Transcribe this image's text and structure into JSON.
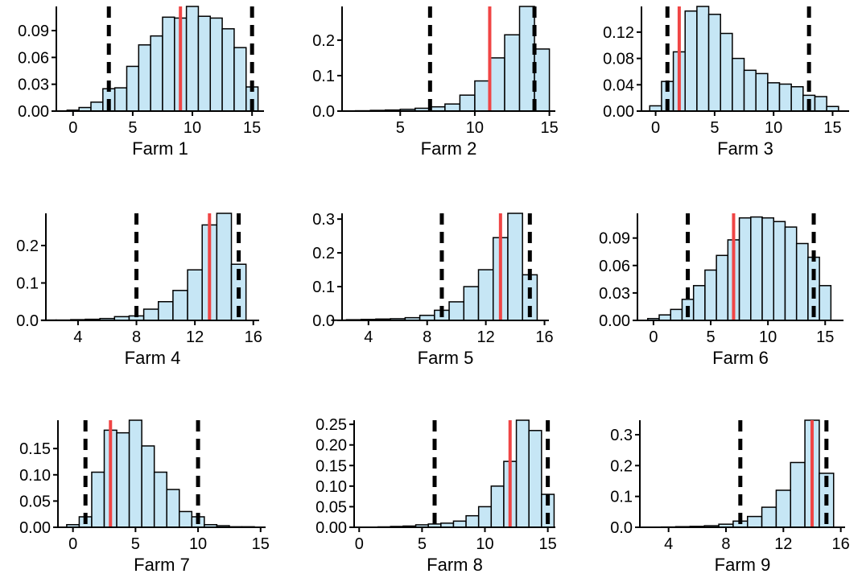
{
  "chart_data": [
    {
      "type": "histogram",
      "xlabel": "Farm 1",
      "color": "#c6e6f5",
      "bins": [
        -0.5,
        0.5,
        1.5,
        2.5,
        3.5,
        4.5,
        5.5,
        6.5,
        7.5,
        8.5,
        9.5,
        10.5,
        11.5,
        12.5,
        13.5,
        14.5,
        15.5
      ],
      "values": [
        0.001,
        0.004,
        0.01,
        0.025,
        0.026,
        0.05,
        0.074,
        0.084,
        0.105,
        0.104,
        0.117,
        0.106,
        0.104,
        0.092,
        0.071,
        0.027
      ],
      "xlim": [
        -1.4,
        16
      ],
      "ylim": [
        0,
        0.117
      ],
      "xticks": [
        0,
        5,
        10,
        15
      ],
      "yticks": [
        {
          "value": 0,
          "label": "0.00"
        },
        0.03,
        0.06,
        0.09
      ],
      "reference_line": 9,
      "interval": [
        3,
        15
      ]
    },
    {
      "type": "histogram",
      "xlabel": "Farm 2",
      "color": "#c6e6f5",
      "bins": [
        2,
        3,
        4,
        5,
        6,
        7,
        8,
        9,
        10,
        11,
        12,
        13,
        14,
        15
      ],
      "values": [
        0.001,
        0.002,
        0.003,
        0.005,
        0.008,
        0.012,
        0.02,
        0.045,
        0.085,
        0.15,
        0.215,
        0.295,
        0.175
      ],
      "xlim": [
        1.1,
        15.4
      ],
      "ylim": [
        0,
        0.295
      ],
      "xticks": [
        5,
        10,
        15
      ],
      "yticks": [
        {
          "value": 0,
          "label": "0.0"
        },
        0.1,
        0.2
      ],
      "reference_line": 11,
      "interval": [
        7,
        14
      ]
    },
    {
      "type": "histogram",
      "xlabel": "Farm 3",
      "color": "#c6e6f5",
      "bins": [
        -0.5,
        0.5,
        1.5,
        2.5,
        3.5,
        4.5,
        5.5,
        6.5,
        7.5,
        8.5,
        9.5,
        10.5,
        11.5,
        12.5,
        13.5,
        14.5,
        15.5
      ],
      "values": [
        0.008,
        0.045,
        0.09,
        0.152,
        0.159,
        0.147,
        0.118,
        0.08,
        0.062,
        0.057,
        0.043,
        0.041,
        0.037,
        0.024,
        0.022,
        0.007
      ],
      "xlim": [
        -1.2,
        16.4
      ],
      "ylim": [
        0,
        0.159
      ],
      "xticks": [
        0,
        5,
        10,
        15
      ],
      "yticks": [
        {
          "value": 0,
          "label": "0.00"
        },
        0.04,
        0.08,
        0.12
      ],
      "reference_line": 2,
      "interval": [
        1,
        13
      ]
    },
    {
      "type": "histogram",
      "xlabel": "Farm 4",
      "color": "#c6e6f5",
      "bins": [
        1.5,
        2.5,
        3.5,
        4.5,
        5.5,
        6.5,
        7.5,
        8.5,
        9.5,
        10.5,
        11.5,
        12.5,
        13.5,
        14.5,
        15.5
      ],
      "values": [
        0.001,
        0.001,
        0.002,
        0.003,
        0.005,
        0.01,
        0.012,
        0.03,
        0.05,
        0.08,
        0.135,
        0.255,
        0.286,
        0.15
      ],
      "xlim": [
        1.8,
        16.4
      ],
      "ylim": [
        0,
        0.286
      ],
      "xticks": [
        4,
        8,
        12,
        16
      ],
      "yticks": [
        {
          "value": 0,
          "label": "0.0"
        },
        0.1,
        0.2
      ],
      "reference_line": 13,
      "interval": [
        8,
        15
      ]
    },
    {
      "type": "histogram",
      "xlabel": "Farm 5",
      "color": "#c6e6f5",
      "bins": [
        1.5,
        2.5,
        3.5,
        4.5,
        5.5,
        6.5,
        7.5,
        8.5,
        9.5,
        10.5,
        11.5,
        12.5,
        13.5,
        14.5,
        15.5
      ],
      "values": [
        0.001,
        0.002,
        0.003,
        0.004,
        0.005,
        0.008,
        0.015,
        0.03,
        0.055,
        0.1,
        0.15,
        0.245,
        0.317,
        0.135
      ],
      "xlim": [
        2.2,
        16.3
      ],
      "ylim": [
        0,
        0.317
      ],
      "xticks": [
        4,
        8,
        12,
        16
      ],
      "yticks": [
        {
          "value": 0,
          "label": "0.0"
        },
        0.1,
        0.2,
        0.3
      ],
      "reference_line": 13,
      "interval": [
        9,
        15
      ]
    },
    {
      "type": "histogram",
      "xlabel": "Farm 6",
      "color": "#c6e6f5",
      "bins": [
        -0.5,
        0.5,
        1.5,
        2.5,
        3.5,
        4.5,
        5.5,
        6.5,
        7.5,
        8.5,
        9.5,
        10.5,
        11.5,
        12.5,
        13.5,
        14.5,
        15.5
      ],
      "values": [
        0.002,
        0.006,
        0.012,
        0.023,
        0.038,
        0.055,
        0.071,
        0.088,
        0.112,
        0.113,
        0.112,
        0.108,
        0.102,
        0.084,
        0.069,
        0.038
      ],
      "xlim": [
        -1.4,
        16.6
      ],
      "ylim": [
        0,
        0.117
      ],
      "xticks": [
        0,
        5,
        10,
        15
      ],
      "yticks": [
        {
          "value": 0,
          "label": "0.00"
        },
        0.03,
        0.06,
        0.09
      ],
      "reference_line": 7,
      "interval": [
        3,
        14
      ]
    },
    {
      "type": "histogram",
      "xlabel": "Farm 7",
      "color": "#c6e6f5",
      "bins": [
        -0.5,
        0.5,
        1.5,
        2.5,
        3.5,
        4.5,
        5.5,
        6.5,
        7.5,
        8.5,
        9.5,
        10.5,
        11.5,
        12.5,
        13.5,
        14.5
      ],
      "values": [
        0.005,
        0.02,
        0.105,
        0.185,
        0.18,
        0.204,
        0.155,
        0.105,
        0.072,
        0.03,
        0.02,
        0.005,
        0.003,
        0.001,
        0.001
      ],
      "xlim": [
        -1.2,
        15.4
      ],
      "ylim": [
        0,
        0.204
      ],
      "xticks": [
        0,
        5,
        10,
        15
      ],
      "yticks": [
        {
          "value": 0,
          "label": "0.00"
        },
        0.05,
        {
          "value": 0.1,
          "label": "0.10"
        },
        0.15
      ],
      "reference_line": 3,
      "interval": [
        1,
        10
      ]
    },
    {
      "type": "histogram",
      "xlabel": "Farm 8",
      "color": "#c6e6f5",
      "bins": [
        -0.5,
        0.5,
        1.5,
        2.5,
        3.5,
        4.5,
        5.5,
        6.5,
        7.5,
        8.5,
        9.5,
        10.5,
        11.5,
        12.5,
        13.5,
        14.5,
        15.5
      ],
      "values": [
        0,
        0,
        0.001,
        0.002,
        0.003,
        0.006,
        0.008,
        0.01,
        0.015,
        0.028,
        0.05,
        0.1,
        0.16,
        0.26,
        0.235,
        0.08
      ],
      "xlim": [
        -0.4,
        15.6
      ],
      "ylim": [
        0,
        0.26
      ],
      "xticks": [
        0,
        5,
        10,
        15
      ],
      "yticks": [
        {
          "value": 0,
          "label": "0.00"
        },
        0.05,
        {
          "value": 0.1,
          "label": "0.10"
        },
        0.15,
        {
          "value": 0.2,
          "label": "0.20"
        },
        0.25
      ],
      "reference_line": 12,
      "interval": [
        6,
        15
      ]
    },
    {
      "type": "histogram",
      "xlabel": "Farm 9",
      "color": "#c6e6f5",
      "bins": [
        1.5,
        2.5,
        3.5,
        4.5,
        5.5,
        6.5,
        7.5,
        8.5,
        9.5,
        10.5,
        11.5,
        12.5,
        13.5,
        14.5,
        15.5
      ],
      "values": [
        0,
        0,
        0.001,
        0.002,
        0.003,
        0.005,
        0.01,
        0.02,
        0.035,
        0.065,
        0.12,
        0.21,
        0.347,
        0.175
      ],
      "xlim": [
        2,
        16.3
      ],
      "ylim": [
        0,
        0.347
      ],
      "xticks": [
        4,
        8,
        12,
        16
      ],
      "yticks": [
        {
          "value": 0,
          "label": "0.0"
        },
        0.1,
        0.2,
        0.3
      ],
      "reference_line": 14,
      "interval": [
        9,
        15
      ]
    }
  ]
}
